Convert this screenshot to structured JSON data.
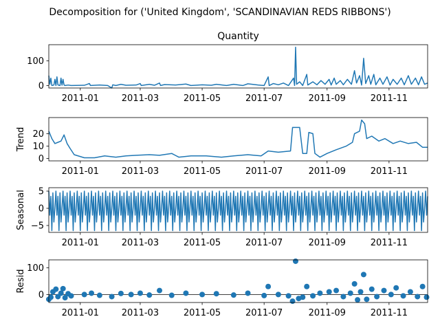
{
  "figure_title": "Decomposition for ('United Kingdom', 'SCANDINAVIAN REDS RIBBONS')",
  "chart_data": [
    {
      "type": "line",
      "title": "Quantity",
      "ylabel": "",
      "x_range": [
        "2010-12-01",
        "2011-12-09"
      ],
      "ylim": [
        -10,
        165
      ],
      "yticks": [
        0,
        100
      ],
      "xticks": [
        "2011-01",
        "2011-03",
        "2011-05",
        "2011-07",
        "2011-09",
        "2011-11"
      ],
      "grid": false,
      "series": [
        {
          "points": [
            [
              "2010-12-01",
              40
            ],
            [
              "2010-12-02",
              5
            ],
            [
              "2010-12-03",
              30
            ],
            [
              "2010-12-04",
              0
            ],
            [
              "2010-12-06",
              2
            ],
            [
              "2010-12-07",
              25
            ],
            [
              "2010-12-08",
              0
            ],
            [
              "2010-12-09",
              35
            ],
            [
              "2010-12-10",
              2
            ],
            [
              "2010-12-12",
              0
            ],
            [
              "2010-12-13",
              30
            ],
            [
              "2010-12-14",
              1
            ],
            [
              "2010-12-15",
              25
            ],
            [
              "2010-12-16",
              2
            ],
            [
              "2010-12-17",
              0
            ],
            [
              "2010-12-20",
              2
            ],
            [
              "2010-12-23",
              0
            ],
            [
              "2011-01-05",
              1
            ],
            [
              "2011-01-10",
              8
            ],
            [
              "2011-01-11",
              0
            ],
            [
              "2011-01-20",
              2
            ],
            [
              "2011-01-28",
              0
            ],
            [
              "2011-02-01",
              -10
            ],
            [
              "2011-02-02",
              3
            ],
            [
              "2011-02-05",
              0
            ],
            [
              "2011-02-10",
              5
            ],
            [
              "2011-02-15",
              1
            ],
            [
              "2011-02-25",
              2
            ],
            [
              "2011-03-01",
              8
            ],
            [
              "2011-03-02",
              0
            ],
            [
              "2011-03-10",
              5
            ],
            [
              "2011-03-15",
              1
            ],
            [
              "2011-03-20",
              10
            ],
            [
              "2011-03-21",
              0
            ],
            [
              "2011-03-25",
              4
            ],
            [
              "2011-04-05",
              2
            ],
            [
              "2011-04-15",
              6
            ],
            [
              "2011-04-20",
              0
            ],
            [
              "2011-05-01",
              3
            ],
            [
              "2011-05-10",
              1
            ],
            [
              "2011-05-15",
              5
            ],
            [
              "2011-05-25",
              0
            ],
            [
              "2011-06-01",
              5
            ],
            [
              "2011-06-10",
              0
            ],
            [
              "2011-06-15",
              7
            ],
            [
              "2011-06-25",
              2
            ],
            [
              "2011-07-01",
              0
            ],
            [
              "2011-07-05",
              35
            ],
            [
              "2011-07-06",
              0
            ],
            [
              "2011-07-10",
              8
            ],
            [
              "2011-07-15",
              3
            ],
            [
              "2011-07-20",
              10
            ],
            [
              "2011-07-25",
              0
            ],
            [
              "2011-07-30",
              30
            ],
            [
              "2011-07-31",
              0
            ],
            [
              "2011-08-01",
              155
            ],
            [
              "2011-08-02",
              5
            ],
            [
              "2011-08-05",
              15
            ],
            [
              "2011-08-08",
              0
            ],
            [
              "2011-08-12",
              45
            ],
            [
              "2011-08-13",
              2
            ],
            [
              "2011-08-18",
              15
            ],
            [
              "2011-08-22",
              3
            ],
            [
              "2011-08-26",
              20
            ],
            [
              "2011-08-30",
              5
            ],
            [
              "2011-09-03",
              25
            ],
            [
              "2011-09-05",
              2
            ],
            [
              "2011-09-08",
              30
            ],
            [
              "2011-09-10",
              5
            ],
            [
              "2011-09-14",
              20
            ],
            [
              "2011-09-17",
              3
            ],
            [
              "2011-09-21",
              25
            ],
            [
              "2011-09-25",
              5
            ],
            [
              "2011-09-28",
              60
            ],
            [
              "2011-09-30",
              10
            ],
            [
              "2011-10-03",
              40
            ],
            [
              "2011-10-05",
              2
            ],
            [
              "2011-10-07",
              110
            ],
            [
              "2011-10-09",
              8
            ],
            [
              "2011-10-12",
              40
            ],
            [
              "2011-10-14",
              5
            ],
            [
              "2011-10-17",
              45
            ],
            [
              "2011-10-19",
              3
            ],
            [
              "2011-10-23",
              30
            ],
            [
              "2011-10-26",
              5
            ],
            [
              "2011-10-30",
              35
            ],
            [
              "2011-11-02",
              2
            ],
            [
              "2011-11-05",
              25
            ],
            [
              "2011-11-09",
              5
            ],
            [
              "2011-11-13",
              30
            ],
            [
              "2011-11-16",
              3
            ],
            [
              "2011-11-20",
              40
            ],
            [
              "2011-11-23",
              5
            ],
            [
              "2011-11-27",
              30
            ],
            [
              "2011-11-30",
              3
            ],
            [
              "2011-12-03",
              35
            ],
            [
              "2011-12-06",
              5
            ],
            [
              "2011-12-09",
              10
            ]
          ]
        }
      ]
    },
    {
      "type": "line",
      "title": "",
      "ylabel": "Trend",
      "x_range": [
        "2010-12-01",
        "2011-12-09"
      ],
      "ylim": [
        -2,
        33
      ],
      "yticks": [
        0,
        10,
        20
      ],
      "xticks": [
        "2011-01",
        "2011-03",
        "2011-05",
        "2011-07",
        "2011-09",
        "2011-11"
      ],
      "grid": false,
      "series": [
        {
          "points": [
            [
              "2010-12-01",
              22
            ],
            [
              "2010-12-04",
              16
            ],
            [
              "2010-12-07",
              12
            ],
            [
              "2010-12-10",
              13
            ],
            [
              "2010-12-13",
              14
            ],
            [
              "2010-12-16",
              19
            ],
            [
              "2010-12-19",
              12
            ],
            [
              "2010-12-22",
              8
            ],
            [
              "2010-12-26",
              3
            ],
            [
              "2011-01-05",
              0.5
            ],
            [
              "2011-01-15",
              0.5
            ],
            [
              "2011-01-25",
              2
            ],
            [
              "2011-02-05",
              1
            ],
            [
              "2011-02-15",
              2
            ],
            [
              "2011-02-25",
              2.5
            ],
            [
              "2011-03-10",
              3
            ],
            [
              "2011-03-20",
              2.5
            ],
            [
              "2011-04-01",
              4
            ],
            [
              "2011-04-08",
              1
            ],
            [
              "2011-04-20",
              2
            ],
            [
              "2011-05-05",
              2
            ],
            [
              "2011-05-20",
              1
            ],
            [
              "2011-06-01",
              2
            ],
            [
              "2011-06-15",
              3
            ],
            [
              "2011-06-28",
              2
            ],
            [
              "2011-07-05",
              6
            ],
            [
              "2011-07-15",
              5
            ],
            [
              "2011-07-27",
              6
            ],
            [
              "2011-07-29",
              25
            ],
            [
              "2011-08-05",
              25
            ],
            [
              "2011-08-08",
              4
            ],
            [
              "2011-08-12",
              4
            ],
            [
              "2011-08-14",
              21
            ],
            [
              "2011-08-18",
              20
            ],
            [
              "2011-08-20",
              4
            ],
            [
              "2011-08-25",
              1
            ],
            [
              "2011-09-01",
              4
            ],
            [
              "2011-09-10",
              7
            ],
            [
              "2011-09-20",
              10
            ],
            [
              "2011-09-26",
              13
            ],
            [
              "2011-09-28",
              20
            ],
            [
              "2011-10-03",
              22
            ],
            [
              "2011-10-05",
              31
            ],
            [
              "2011-10-08",
              28
            ],
            [
              "2011-10-10",
              16
            ],
            [
              "2011-10-15",
              18
            ],
            [
              "2011-10-22",
              14
            ],
            [
              "2011-10-28",
              16
            ],
            [
              "2011-11-05",
              12
            ],
            [
              "2011-11-12",
              14
            ],
            [
              "2011-11-20",
              12
            ],
            [
              "2011-11-28",
              13
            ],
            [
              "2011-12-04",
              9
            ],
            [
              "2011-12-09",
              9
            ]
          ]
        }
      ]
    },
    {
      "type": "line",
      "title": "",
      "ylabel": "Seasonal",
      "x_range": [
        "2010-12-01",
        "2011-12-09"
      ],
      "ylim": [
        -7,
        6
      ],
      "yticks": [
        -5,
        0,
        5
      ],
      "xticks": [
        "2011-01",
        "2011-03",
        "2011-05",
        "2011-07",
        "2011-09",
        "2011-11"
      ],
      "grid": false,
      "series": [
        {
          "period_days": 7,
          "pattern": [
            5,
            -2,
            3.5,
            -6.5,
            4.5,
            -4,
            0
          ],
          "start": "2010-12-01",
          "end": "2011-12-09"
        }
      ]
    },
    {
      "type": "scatter",
      "title": "",
      "ylabel": "Resid",
      "x_range": [
        "2010-12-01",
        "2011-12-09"
      ],
      "ylim": [
        -30,
        130
      ],
      "yticks": [
        0,
        100
      ],
      "xticks": [
        "2011-01",
        "2011-03",
        "2011-05",
        "2011-07",
        "2011-09",
        "2011-11"
      ],
      "grid": false,
      "baseline": 0,
      "series": [
        {
          "points": [
            [
              "2010-12-01",
              -18
            ],
            [
              "2010-12-03",
              -10
            ],
            [
              "2010-12-05",
              10
            ],
            [
              "2010-12-08",
              20
            ],
            [
              "2010-12-10",
              -8
            ],
            [
              "2010-12-13",
              5
            ],
            [
              "2010-12-15",
              22
            ],
            [
              "2010-12-17",
              -12
            ],
            [
              "2010-12-20",
              3
            ],
            [
              "2010-12-23",
              -5
            ],
            [
              "2011-01-05",
              0
            ],
            [
              "2011-01-12",
              5
            ],
            [
              "2011-01-20",
              -3
            ],
            [
              "2011-02-01",
              -8
            ],
            [
              "2011-02-10",
              4
            ],
            [
              "2011-02-20",
              0
            ],
            [
              "2011-03-01",
              5
            ],
            [
              "2011-03-10",
              -2
            ],
            [
              "2011-03-20",
              15
            ],
            [
              "2011-04-01",
              -3
            ],
            [
              "2011-04-15",
              5
            ],
            [
              "2011-05-01",
              0
            ],
            [
              "2011-05-15",
              3
            ],
            [
              "2011-06-01",
              -2
            ],
            [
              "2011-06-15",
              5
            ],
            [
              "2011-07-01",
              -4
            ],
            [
              "2011-07-05",
              30
            ],
            [
              "2011-07-15",
              0
            ],
            [
              "2011-07-25",
              -5
            ],
            [
              "2011-07-29",
              -25
            ],
            [
              "2011-08-01",
              125
            ],
            [
              "2011-08-04",
              -15
            ],
            [
              "2011-08-08",
              -10
            ],
            [
              "2011-08-12",
              30
            ],
            [
              "2011-08-18",
              -5
            ],
            [
              "2011-08-25",
              5
            ],
            [
              "2011-09-03",
              10
            ],
            [
              "2011-09-10",
              15
            ],
            [
              "2011-09-17",
              -8
            ],
            [
              "2011-09-24",
              5
            ],
            [
              "2011-09-28",
              40
            ],
            [
              "2011-10-01",
              -20
            ],
            [
              "2011-10-04",
              10
            ],
            [
              "2011-10-07",
              75
            ],
            [
              "2011-10-10",
              -18
            ],
            [
              "2011-10-15",
              20
            ],
            [
              "2011-10-20",
              -8
            ],
            [
              "2011-10-27",
              15
            ],
            [
              "2011-11-03",
              0
            ],
            [
              "2011-11-08",
              25
            ],
            [
              "2011-11-15",
              -5
            ],
            [
              "2011-11-22",
              10
            ],
            [
              "2011-11-29",
              -8
            ],
            [
              "2011-12-04",
              30
            ],
            [
              "2011-12-08",
              -10
            ]
          ]
        }
      ]
    }
  ]
}
